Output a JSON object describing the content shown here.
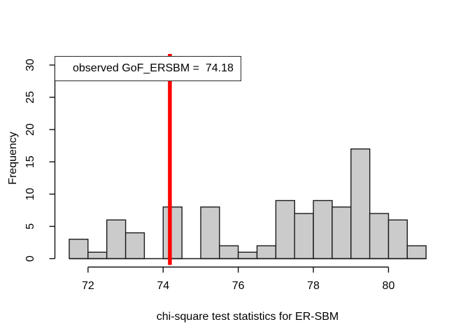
{
  "chart_data": {
    "type": "bar",
    "subtype": "histogram",
    "title": "",
    "xlabel": "chi-square test statistics for ER-SBM",
    "ylabel": "Frequency",
    "bin_edges": [
      71.5,
      72.0,
      72.5,
      73.0,
      73.5,
      74.0,
      74.5,
      75.0,
      75.5,
      76.0,
      76.5,
      77.0,
      77.5,
      78.0,
      78.5,
      79.0,
      79.5,
      80.0,
      80.5,
      81.0
    ],
    "counts": [
      3,
      1,
      6,
      4,
      0,
      8,
      0,
      8,
      2,
      1,
      2,
      9,
      7,
      9,
      8,
      17,
      7,
      6,
      2
    ],
    "x_ticks": [
      72,
      74,
      76,
      78,
      80
    ],
    "y_ticks": [
      0,
      5,
      10,
      15,
      20,
      25,
      30
    ],
    "xlim": [
      71.5,
      81.0
    ],
    "ylim": [
      0,
      30
    ],
    "grid": false,
    "legend_position": "top-left",
    "legend_label": "observed GoF_ERSBM =  74.18",
    "observed_value": 74.18,
    "observed_line_color": "#ff0000",
    "bar_fill": "#cbcbcb",
    "bar_border": "#1a1a1a",
    "axis_color": "#111111"
  }
}
